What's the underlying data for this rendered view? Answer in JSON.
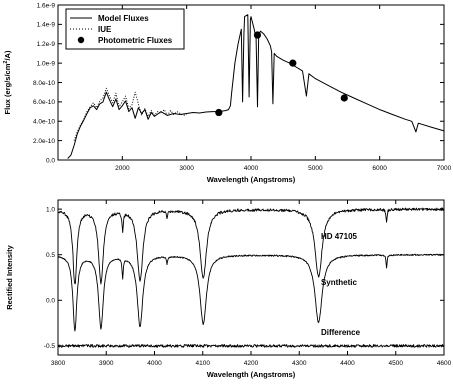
{
  "chart_data": [
    {
      "type": "line",
      "xlabel": "Wavelength (Angstroms)",
      "ylabel": "Flux (erg/s/cm",
      "ylabel_sup": "2",
      "ylabel_end": "/A)",
      "xlim": [
        1000,
        7000
      ],
      "ylim": [
        0,
        1.6e-09
      ],
      "xticks": [
        1000,
        2000,
        3000,
        4000,
        5000,
        6000,
        7000
      ],
      "xtick_labels": [
        "",
        "2000",
        "3000",
        "4000",
        "5000",
        "6000",
        "7000"
      ],
      "yticks": [
        0,
        2e-10,
        4e-10,
        6e-10,
        8e-10,
        1e-09,
        1.2e-09,
        1.4e-09,
        1.6e-09
      ],
      "ytick_labels": [
        "0.0",
        "2.0e-10",
        "4.0e-10",
        "6.0e-10",
        "8.0e-10",
        "1.0e-9",
        "1.2e-9",
        "1.4e-9",
        "1.6e-9"
      ],
      "legend": {
        "placement": "top-left",
        "entries": [
          "Model Fluxes",
          "IUE",
          "Photometric Fluxes"
        ]
      },
      "series": [
        {
          "name": "Model Fluxes",
          "style": "solid",
          "x": [
            1150,
            1200,
            1250,
            1300,
            1350,
            1400,
            1450,
            1500,
            1550,
            1600,
            1650,
            1700,
            1750,
            1800,
            1850,
            1900,
            1950,
            2000,
            2050,
            2100,
            2150,
            2200,
            2250,
            2300,
            2350,
            2400,
            2450,
            2500,
            2600,
            2700,
            2800,
            2900,
            3000,
            3100,
            3200,
            3300,
            3400,
            3500,
            3600,
            3650,
            3680,
            3700,
            3750,
            3800,
            3850,
            3870,
            3889,
            3900,
            3950,
            3970,
            3990,
            4000,
            4050,
            4080,
            4101,
            4120,
            4150,
            4200,
            4250,
            4300,
            4320,
            4340,
            4360,
            4400,
            4500,
            4600,
            4700,
            4800,
            4861,
            4900,
            5000,
            5200,
            5400,
            5600,
            5800,
            6000,
            6200,
            6400,
            6500,
            6563,
            6600,
            6800,
            7000
          ],
          "values": [
            1.5e-11,
            5e-11,
            1.5e-10,
            2.7e-10,
            3.5e-10,
            4.1e-10,
            4.8e-10,
            5.4e-10,
            5.6e-10,
            5.2e-10,
            5.8e-10,
            6e-10,
            7e-10,
            6.2e-10,
            5.5e-10,
            6.3e-10,
            5.2e-10,
            5.6e-10,
            6.1e-10,
            5e-10,
            5.4e-10,
            4.3e-10,
            5.4e-10,
            4.8e-10,
            5.2e-10,
            4.2e-10,
            4.9e-10,
            4.5e-10,
            5e-10,
            4.6e-10,
            4.8e-10,
            4.7e-10,
            4.8e-10,
            4.9e-10,
            4.85e-10,
            4.95e-10,
            5e-10,
            5e-10,
            5.1e-10,
            5.2e-10,
            5.6e-10,
            7e-10,
            1e-09,
            1.2e-09,
            1.35e-09,
            6e-10,
            1.3e-09,
            1.48e-09,
            1.5e-09,
            6.5e-10,
            1.45e-09,
            1.48e-09,
            1.35e-09,
            1.25e-09,
            5.5e-10,
            1.3e-09,
            1.33e-09,
            1.3e-09,
            1.25e-09,
            1.18e-09,
            1.12e-09,
            5.8e-10,
            1.1e-09,
            1.07e-09,
            1.03e-09,
            1e-09,
            9.6e-10,
            9.2e-10,
            6.6e-10,
            8.9e-10,
            8.4e-10,
            7.7e-10,
            7e-10,
            6.4e-10,
            5.8e-10,
            5.2e-10,
            4.7e-10,
            4.2e-10,
            4e-10,
            2.9e-10,
            3.8e-10,
            3.4e-10,
            3e-10
          ]
        },
        {
          "name": "IUE",
          "style": "dotted",
          "x": [
            1250,
            1300,
            1350,
            1400,
            1450,
            1500,
            1550,
            1600,
            1650,
            1700,
            1750,
            1800,
            1850,
            1900,
            1950,
            2000,
            2050,
            2100,
            2150,
            2200,
            2250,
            2300,
            2350,
            2400,
            2450,
            2500,
            2550,
            2600,
            2650,
            2700,
            2750,
            2800,
            2850,
            2900,
            2950,
            3000
          ],
          "values": [
            2e-10,
            2.9e-10,
            3.6e-10,
            4.2e-10,
            5e-10,
            5.5e-10,
            5.9e-10,
            5.4e-10,
            6.1e-10,
            6.4e-10,
            7.4e-10,
            6.6e-10,
            5.9e-10,
            6.9e-10,
            5.5e-10,
            6e-10,
            6.6e-10,
            5.3e-10,
            5.7e-10,
            7e-10,
            5.8e-10,
            4.6e-10,
            5.3e-10,
            4.5e-10,
            5.1e-10,
            4.6e-10,
            5e-10,
            4.8e-10,
            5.2e-10,
            4.6e-10,
            5.1e-10,
            4.7e-10,
            5e-10,
            4.8e-10,
            4.6e-10,
            4.7e-10
          ]
        },
        {
          "name": "Photometric Fluxes",
          "style": "marker",
          "x": [
            3500,
            4100,
            4650,
            5450
          ],
          "values": [
            4.9e-10,
            1.29e-09,
            1e-09,
            6.4e-10
          ]
        }
      ]
    },
    {
      "type": "line",
      "xlabel": "Wavelength (Angstroms)",
      "ylabel": "Rectified Intensity",
      "xlim": [
        3800,
        4600
      ],
      "ylim": [
        -0.6,
        1.1
      ],
      "xticks": [
        3800,
        3900,
        4000,
        4100,
        4200,
        4300,
        4400,
        4500,
        4600
      ],
      "xtick_labels": [
        "3800",
        "3900",
        "4000",
        "4100",
        "4200",
        "4300",
        "4400",
        "4500",
        "4600"
      ],
      "yticks": [
        -0.5,
        0,
        0.5,
        1.0
      ],
      "ytick_labels": [
        "-0.5",
        "0.0",
        "0.5",
        "1.0"
      ],
      "annotations": [
        "HD 47105",
        "Synthetic",
        "Difference"
      ],
      "lines": [
        {
          "wavelength": 3835,
          "depth": 0.82,
          "width": 5
        },
        {
          "wavelength": 3889,
          "depth": 0.8,
          "width": 6
        },
        {
          "wavelength": 3934,
          "depth": 0.22,
          "width": 1.5
        },
        {
          "wavelength": 3970,
          "depth": 0.78,
          "width": 7
        },
        {
          "wavelength": 4026,
          "depth": 0.08,
          "width": 1.5
        },
        {
          "wavelength": 4101,
          "depth": 0.76,
          "width": 8
        },
        {
          "wavelength": 4340,
          "depth": 0.74,
          "width": 9
        },
        {
          "wavelength": 4481,
          "depth": 0.15,
          "width": 1.2
        }
      ],
      "series": [
        {
          "name": "HD 47105",
          "offset": 1.0
        },
        {
          "name": "Synthetic",
          "offset": 0.5
        },
        {
          "name": "Difference",
          "offset": -0.5
        }
      ]
    }
  ]
}
